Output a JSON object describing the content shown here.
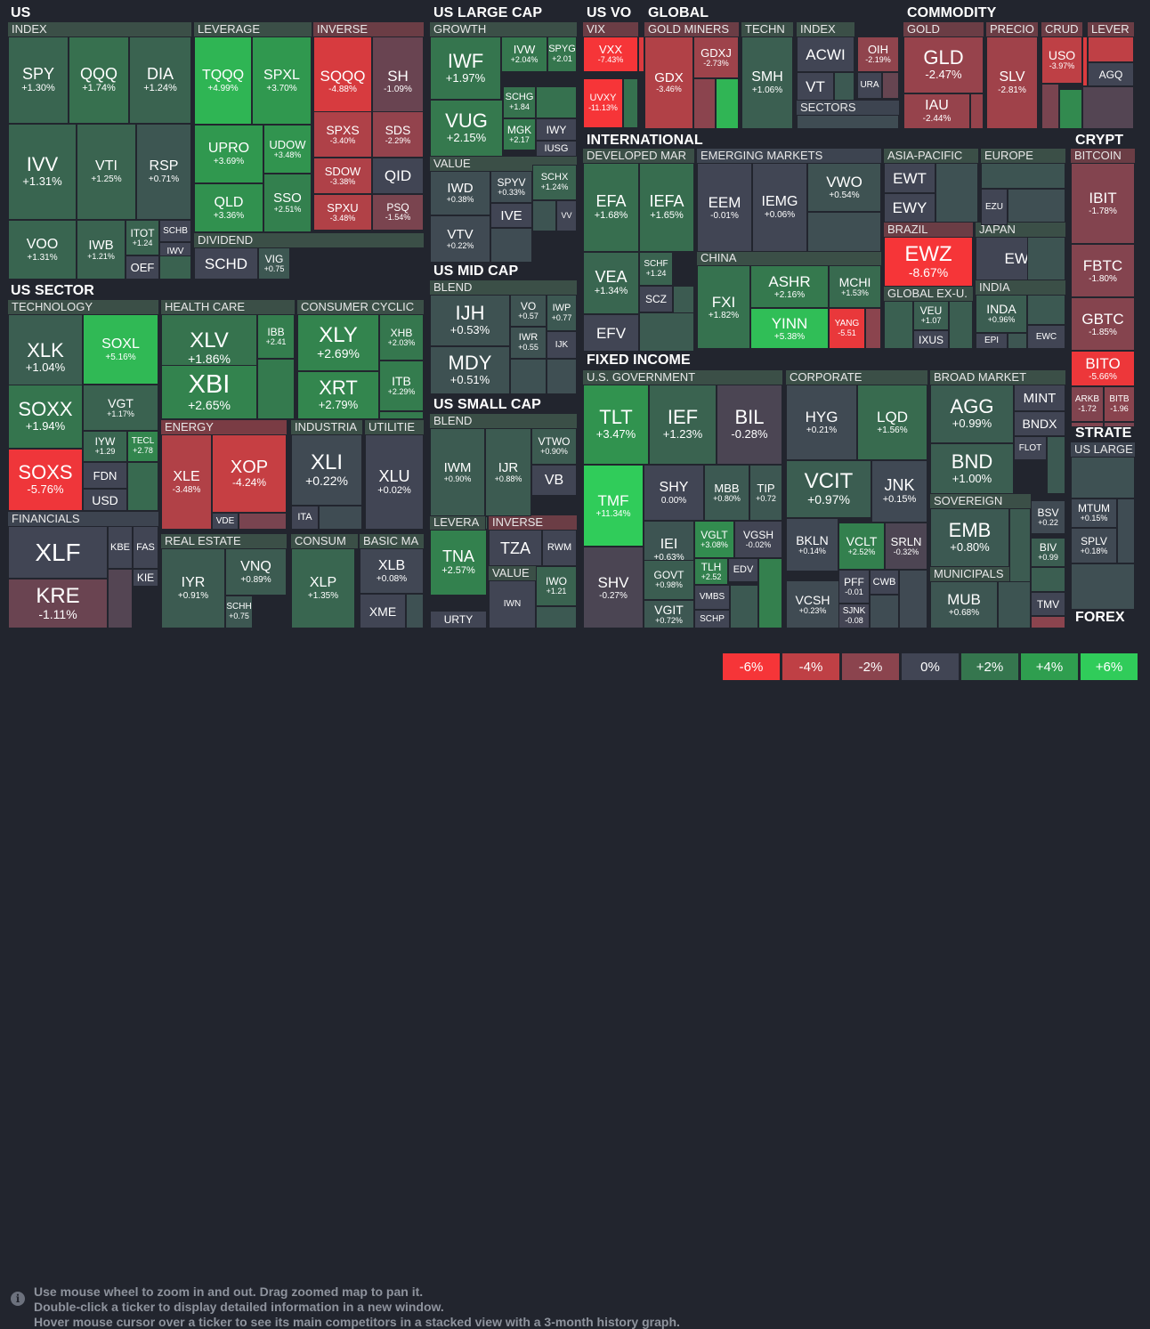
{
  "sections": [
    "US",
    "US SECTOR",
    "US LARGE CAP",
    "US MID CAP",
    "US SMALL CAP",
    "US VO",
    "GLOBAL",
    "COMMODITY",
    "INTERNATIONAL",
    "FIXED INCOME",
    "CRYPT",
    "STRATE",
    "FOREX"
  ],
  "groups": [
    "INDEX",
    "LEVERAGE",
    "INVERSE",
    "DIVIDEND",
    "TECHNOLOGY",
    "HEALTH CARE",
    "CONSUMER CYCLIC",
    "ENERGY",
    "INDUSTRIA",
    "UTILITIE",
    "FINANCIALS",
    "REAL ESTATE",
    "CONSUM",
    "BASIC MA",
    "GROWTH",
    "VALUE",
    "BLEND",
    "BLEND",
    "LEVERA",
    "INVERSE",
    "VALUE",
    "VIX",
    "GOLD MINERS",
    "TECHN",
    "INDEX",
    "SECTORS",
    "GOLD",
    "PRECIO",
    "CRUD",
    "LEVER",
    "DEVELOPED MAR",
    "EMERGING MARKETS",
    "ASIA-PACIFIC",
    "EUROPE",
    "BRAZIL",
    "JAPAN",
    "CHINA",
    "INDIA",
    "GLOBAL EX-U.",
    "U.S. GOVERNMENT",
    "CORPORATE",
    "BROAD MARKET",
    "SOVEREIGN",
    "MUNICIPALS",
    "BITCOIN",
    "US LARGE"
  ],
  "tiles": [
    {
      "tk": "SPY",
      "pc": "+1.30%"
    },
    {
      "tk": "QQQ",
      "pc": "+1.74%"
    },
    {
      "tk": "DIA",
      "pc": "+1.24%"
    },
    {
      "tk": "IVV",
      "pc": "+1.31%"
    },
    {
      "tk": "VTI",
      "pc": "+1.25%"
    },
    {
      "tk": "RSP",
      "pc": "+0.71%"
    },
    {
      "tk": "VOO",
      "pc": "+1.31%"
    },
    {
      "tk": "IWB",
      "pc": "+1.21%"
    },
    {
      "tk": "ITOT",
      "pc": "+1.24"
    },
    {
      "tk": "SCHB",
      "pc": ""
    },
    {
      "tk": "IWV",
      "pc": ""
    },
    {
      "tk": "OEF",
      "pc": ""
    },
    {
      "tk": "TQQQ",
      "pc": "+4.99%"
    },
    {
      "tk": "SPXL",
      "pc": "+3.70%"
    },
    {
      "tk": "UPRO",
      "pc": "+3.69%"
    },
    {
      "tk": "UDOW",
      "pc": "+3.48%"
    },
    {
      "tk": "QLD",
      "pc": "+3.36%"
    },
    {
      "tk": "SSO",
      "pc": "+2.51%"
    },
    {
      "tk": "SQQQ",
      "pc": "-4.88%"
    },
    {
      "tk": "SH",
      "pc": "-1.09%"
    },
    {
      "tk": "SPXS",
      "pc": "-3.40%"
    },
    {
      "tk": "SDS",
      "pc": "-2.29%"
    },
    {
      "tk": "SDOW",
      "pc": "-3.38%"
    },
    {
      "tk": "QID",
      "pc": ""
    },
    {
      "tk": "SPXU",
      "pc": "-3.48%"
    },
    {
      "tk": "PSQ",
      "pc": "-1.54%"
    },
    {
      "tk": "SCHD",
      "pc": ""
    },
    {
      "tk": "VIG",
      "pc": "+0.75"
    },
    {
      "tk": "XLK",
      "pc": "+1.04%"
    },
    {
      "tk": "SOXL",
      "pc": "+5.16%"
    },
    {
      "tk": "SOXX",
      "pc": "+1.94%"
    },
    {
      "tk": "VGT",
      "pc": "+1.17%"
    },
    {
      "tk": "IYW",
      "pc": "+1.29"
    },
    {
      "tk": "TECL",
      "pc": "+2.78"
    },
    {
      "tk": "SOXS",
      "pc": "-5.76%"
    },
    {
      "tk": "FDN",
      "pc": ""
    },
    {
      "tk": "USD",
      "pc": ""
    },
    {
      "tk": "XLV",
      "pc": "+1.86%"
    },
    {
      "tk": "IBB",
      "pc": "+2.41"
    },
    {
      "tk": "XBI",
      "pc": "+2.65%"
    },
    {
      "tk": "XLY",
      "pc": "+2.69%"
    },
    {
      "tk": "XHB",
      "pc": "+2.03%"
    },
    {
      "tk": "XRT",
      "pc": "+2.79%"
    },
    {
      "tk": "ITB",
      "pc": "+2.29%"
    },
    {
      "tk": "XLE",
      "pc": "-3.48%"
    },
    {
      "tk": "XOP",
      "pc": "-4.24%"
    },
    {
      "tk": "VDE",
      "pc": ""
    },
    {
      "tk": "XLI",
      "pc": "+0.22%"
    },
    {
      "tk": "ITA",
      "pc": ""
    },
    {
      "tk": "XLU",
      "pc": "+0.02%"
    },
    {
      "tk": "XLF",
      "pc": ""
    },
    {
      "tk": "KBE",
      "pc": ""
    },
    {
      "tk": "FAS",
      "pc": ""
    },
    {
      "tk": "KIE",
      "pc": ""
    },
    {
      "tk": "KRE",
      "pc": "-1.11%"
    },
    {
      "tk": "IYR",
      "pc": "+0.91%"
    },
    {
      "tk": "VNQ",
      "pc": "+0.89%"
    },
    {
      "tk": "SCHH",
      "pc": "+0.75"
    },
    {
      "tk": "XLP",
      "pc": "+1.35%"
    },
    {
      "tk": "XLB",
      "pc": "+0.08%"
    },
    {
      "tk": "XME",
      "pc": ""
    },
    {
      "tk": "IWF",
      "pc": "+1.97%"
    },
    {
      "tk": "IVW",
      "pc": "+2.04%"
    },
    {
      "tk": "SPYG",
      "pc": "+2.01"
    },
    {
      "tk": "VUG",
      "pc": "+2.15%"
    },
    {
      "tk": "SCHG",
      "pc": "+1.84"
    },
    {
      "tk": "MGK",
      "pc": "+2.17"
    },
    {
      "tk": "IWY",
      "pc": ""
    },
    {
      "tk": "IUSG",
      "pc": ""
    },
    {
      "tk": "IWD",
      "pc": "+0.38%"
    },
    {
      "tk": "SPYV",
      "pc": "+0.33%"
    },
    {
      "tk": "SCHX",
      "pc": "+1.24%"
    },
    {
      "tk": "IVE",
      "pc": ""
    },
    {
      "tk": "VV",
      "pc": ""
    },
    {
      "tk": "VTV",
      "pc": "+0.22%"
    },
    {
      "tk": "IJH",
      "pc": "+0.53%"
    },
    {
      "tk": "VO",
      "pc": "+0.57"
    },
    {
      "tk": "IWP",
      "pc": "+0.77"
    },
    {
      "tk": "IWR",
      "pc": "+0.55"
    },
    {
      "tk": "IJK",
      "pc": ""
    },
    {
      "tk": "MDY",
      "pc": "+0.51%"
    },
    {
      "tk": "IWM",
      "pc": "+0.90%"
    },
    {
      "tk": "IJR",
      "pc": "+0.88%"
    },
    {
      "tk": "VTWO",
      "pc": "+0.90%"
    },
    {
      "tk": "VB",
      "pc": ""
    },
    {
      "tk": "TNA",
      "pc": "+2.57%"
    },
    {
      "tk": "URTY",
      "pc": ""
    },
    {
      "tk": "TZA",
      "pc": ""
    },
    {
      "tk": "RWM",
      "pc": ""
    },
    {
      "tk": "IWN",
      "pc": ""
    },
    {
      "tk": "IWO",
      "pc": "+1.21"
    },
    {
      "tk": "VXX",
      "pc": "-7.43%"
    },
    {
      "tk": "UVXY",
      "pc": "-11.13%"
    },
    {
      "tk": "GDX",
      "pc": "-3.46%"
    },
    {
      "tk": "GDXJ",
      "pc": "-2.73%"
    },
    {
      "tk": "SMH",
      "pc": "+1.06%"
    },
    {
      "tk": "ACWI",
      "pc": ""
    },
    {
      "tk": "VT",
      "pc": ""
    },
    {
      "tk": "OIH",
      "pc": "-2.19%"
    },
    {
      "tk": "URA",
      "pc": ""
    },
    {
      "tk": "GLD",
      "pc": "-2.47%"
    },
    {
      "tk": "IAU",
      "pc": "-2.44%"
    },
    {
      "tk": "SLV",
      "pc": "-2.81%"
    },
    {
      "tk": "USO",
      "pc": "-3.97%"
    },
    {
      "tk": "AGQ",
      "pc": ""
    },
    {
      "tk": "EFA",
      "pc": "+1.68%"
    },
    {
      "tk": "IEFA",
      "pc": "+1.65%"
    },
    {
      "tk": "VEA",
      "pc": "+1.34%"
    },
    {
      "tk": "SCHF",
      "pc": "+1.24"
    },
    {
      "tk": "SCZ",
      "pc": ""
    },
    {
      "tk": "EFV",
      "pc": ""
    },
    {
      "tk": "EEM",
      "pc": "-0.01%"
    },
    {
      "tk": "IEMG",
      "pc": "+0.06%"
    },
    {
      "tk": "VWO",
      "pc": "+0.54%"
    },
    {
      "tk": "EWT",
      "pc": ""
    },
    {
      "tk": "EWY",
      "pc": ""
    },
    {
      "tk": "EZU",
      "pc": ""
    },
    {
      "tk": "EWZ",
      "pc": "-8.67%"
    },
    {
      "tk": "EWJ",
      "pc": ""
    },
    {
      "tk": "FXI",
      "pc": "+1.82%"
    },
    {
      "tk": "ASHR",
      "pc": "+2.16%"
    },
    {
      "tk": "MCHI",
      "pc": "+1.53%"
    },
    {
      "tk": "YINN",
      "pc": "+5.38%"
    },
    {
      "tk": "YANG",
      "pc": "-5.51"
    },
    {
      "tk": "VEU",
      "pc": "+1.07"
    },
    {
      "tk": "IXUS",
      "pc": ""
    },
    {
      "tk": "INDA",
      "pc": "+0.96%"
    },
    {
      "tk": "EPI",
      "pc": ""
    },
    {
      "tk": "EWC",
      "pc": ""
    },
    {
      "tk": "TLT",
      "pc": "+3.47%"
    },
    {
      "tk": "IEF",
      "pc": "+1.23%"
    },
    {
      "tk": "BIL",
      "pc": "-0.28%"
    },
    {
      "tk": "TMF",
      "pc": "+11.34%"
    },
    {
      "tk": "SHY",
      "pc": "0.00%"
    },
    {
      "tk": "MBB",
      "pc": "+0.80%"
    },
    {
      "tk": "TIP",
      "pc": "+0.72"
    },
    {
      "tk": "SHV",
      "pc": "-0.27%"
    },
    {
      "tk": "IEI",
      "pc": "+0.63%"
    },
    {
      "tk": "VGLT",
      "pc": "+3.08%"
    },
    {
      "tk": "VGSH",
      "pc": "-0.02%"
    },
    {
      "tk": "GOVT",
      "pc": "+0.98%"
    },
    {
      "tk": "TLH",
      "pc": "+2.52"
    },
    {
      "tk": "EDV",
      "pc": ""
    },
    {
      "tk": "VGIT",
      "pc": "+0.72%"
    },
    {
      "tk": "VMBS",
      "pc": ""
    },
    {
      "tk": "SCHP",
      "pc": ""
    },
    {
      "tk": "HYG",
      "pc": "+0.21%"
    },
    {
      "tk": "LQD",
      "pc": "+1.56%"
    },
    {
      "tk": "VCIT",
      "pc": "+0.97%"
    },
    {
      "tk": "JNK",
      "pc": "+0.15%"
    },
    {
      "tk": "BKLN",
      "pc": "+0.14%"
    },
    {
      "tk": "VCLT",
      "pc": "+2.52%"
    },
    {
      "tk": "SRLN",
      "pc": "-0.32%"
    },
    {
      "tk": "PFF",
      "pc": "-0.01"
    },
    {
      "tk": "CWB",
      "pc": ""
    },
    {
      "tk": "VCSH",
      "pc": "+0.23%"
    },
    {
      "tk": "SJNK",
      "pc": "-0.08"
    },
    {
      "tk": "AGG",
      "pc": "+0.99%"
    },
    {
      "tk": "MINT",
      "pc": ""
    },
    {
      "tk": "BNDX",
      "pc": ""
    },
    {
      "tk": "FLOT",
      "pc": ""
    },
    {
      "tk": "BND",
      "pc": "+1.00%"
    },
    {
      "tk": "EMB",
      "pc": "+0.80%"
    },
    {
      "tk": "BSV",
      "pc": "+0.22"
    },
    {
      "tk": "BIV",
      "pc": "+0.99"
    },
    {
      "tk": "MUB",
      "pc": "+0.68%"
    },
    {
      "tk": "TMV",
      "pc": ""
    },
    {
      "tk": "IBIT",
      "pc": "-1.78%"
    },
    {
      "tk": "FBTC",
      "pc": "-1.80%"
    },
    {
      "tk": "GBTC",
      "pc": "-1.85%"
    },
    {
      "tk": "BITO",
      "pc": "-5.66%"
    },
    {
      "tk": "ARKB",
      "pc": "-1.72"
    },
    {
      "tk": "BITB",
      "pc": "-1.96"
    },
    {
      "tk": "MTUM",
      "pc": "+0.15%"
    },
    {
      "tk": "SPLV",
      "pc": "+0.18%"
    }
  ],
  "footer": {
    "line1": "Use mouse wheel to zoom in and out. Drag zoomed map to pan it.",
    "line2": "Double-click a ticker to display detailed information in a new window.",
    "line3": "Hover mouse cursor over a ticker to see its main competitors in a stacked view with a 3-month history graph.",
    "info_icon": "i"
  },
  "scale": [
    "-6%",
    "-4%",
    "-2%",
    "0%",
    "+2%",
    "+4%",
    "+6%"
  ],
  "colors": {
    "background": "#22252e",
    "neutral": "#414554",
    "red_strong": "#f63538",
    "green_strong": "#30cc5a"
  }
}
